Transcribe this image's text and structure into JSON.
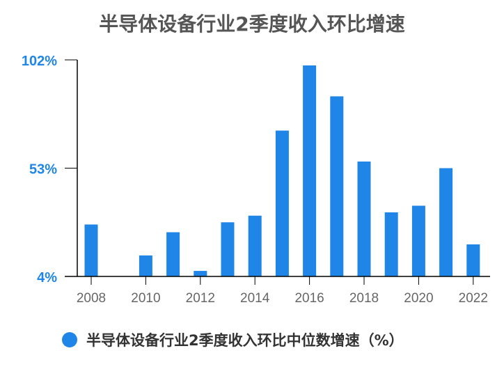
{
  "chart_data": {
    "type": "bar",
    "title": "半导体设备行业2季度收入环比增速",
    "xlabel": "",
    "ylabel": "",
    "ylim": [
      4,
      102
    ],
    "y_ticks": [
      {
        "value": 102,
        "label": "102%"
      },
      {
        "value": 53,
        "label": "53%"
      },
      {
        "value": 4,
        "label": "4%"
      }
    ],
    "x_ticks": [
      "2008",
      "2010",
      "2012",
      "2014",
      "2016",
      "2018",
      "2020",
      "2022"
    ],
    "categories": [
      "2008",
      "2009",
      "2010",
      "2011",
      "2012",
      "2013",
      "2014",
      "2015",
      "2016",
      "2017",
      "2018",
      "2019",
      "2020",
      "2021",
      "2022"
    ],
    "series": [
      {
        "name": "半导体设备行业2季度收入环比中位数增速（%）",
        "values": [
          27.5,
          4,
          13.5,
          24,
          6.5,
          28.5,
          31.5,
          70,
          99.5,
          85.5,
          56,
          33,
          36,
          53,
          18.5
        ]
      }
    ],
    "grid": false,
    "legend": "bottom-center",
    "colors": {
      "bar": "#1f86e8",
      "tick_label": "#1f86e8",
      "title": "#555555",
      "axis": "#000000",
      "x_label": "#666666"
    }
  }
}
